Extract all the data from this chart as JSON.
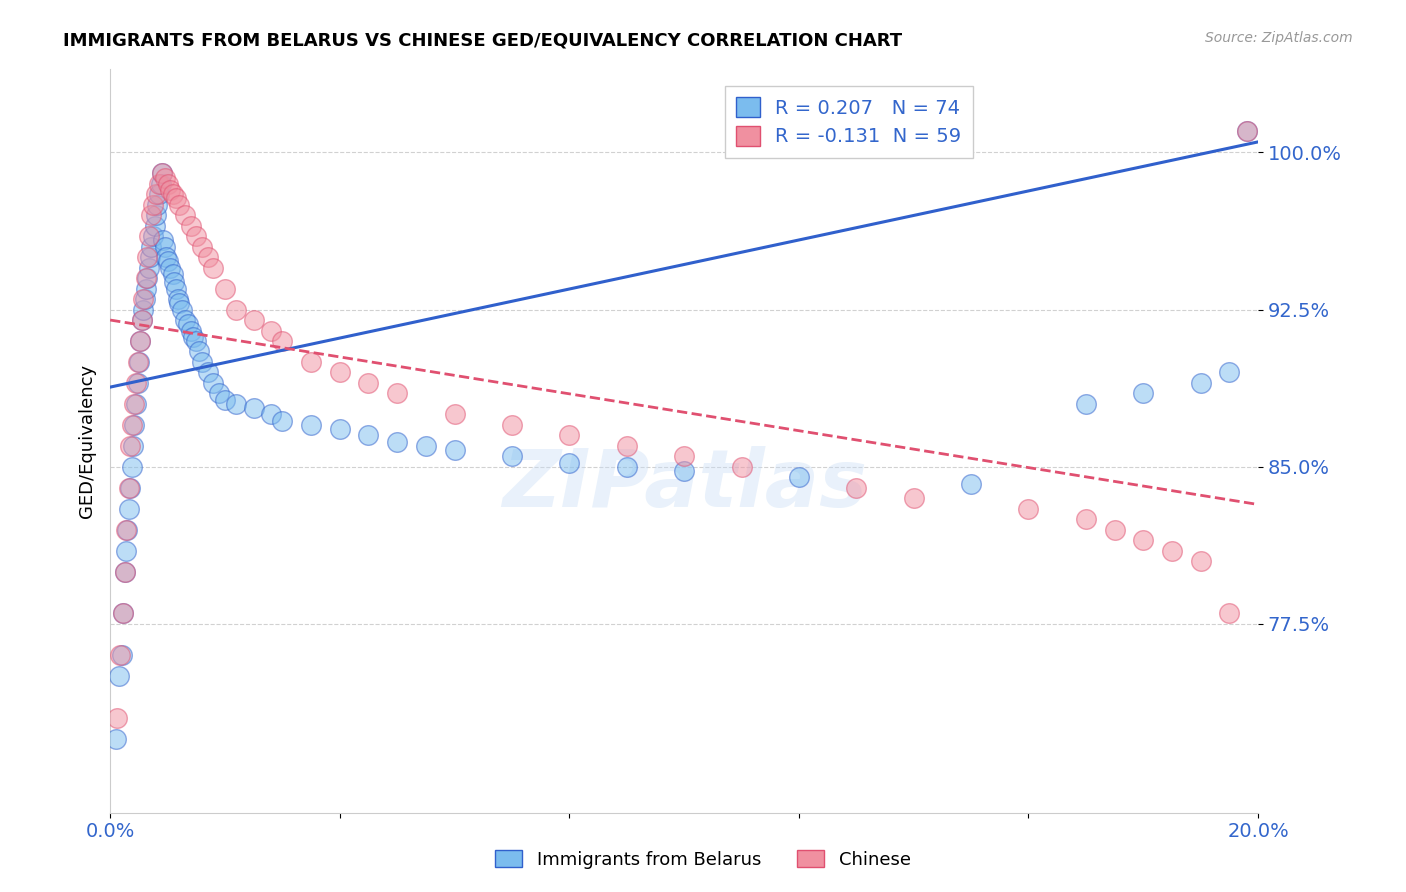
{
  "title": "IMMIGRANTS FROM BELARUS VS CHINESE GED/EQUIVALENCY CORRELATION CHART",
  "source": "Source: ZipAtlas.com",
  "ylabel": "GED/Equivalency",
  "ytick_labels": [
    "100.0%",
    "92.5%",
    "85.0%",
    "77.5%"
  ],
  "ytick_values": [
    1.0,
    0.925,
    0.85,
    0.775
  ],
  "xlim": [
    0.0,
    0.2
  ],
  "ylim": [
    0.685,
    1.04
  ],
  "legend_r1": "R = 0.207",
  "legend_n1": "N = 74",
  "legend_r2": "R = -0.131",
  "legend_n2": "N = 59",
  "color_blue": "#7bbcee",
  "color_pink": "#f090a0",
  "color_line_blue": "#3060cc",
  "color_line_pink": "#e05070",
  "color_axis_labels": "#3366cc",
  "watermark": "ZIPatlas",
  "blue_line_x0": 0.0,
  "blue_line_y0": 0.888,
  "blue_line_x1": 0.2,
  "blue_line_y1": 1.005,
  "pink_line_x0": 0.0,
  "pink_line_y0": 0.92,
  "pink_line_x1": 0.2,
  "pink_line_y1": 0.832,
  "belarus_x": [
    0.001,
    0.0015,
    0.002,
    0.0022,
    0.0025,
    0.0028,
    0.003,
    0.0032,
    0.0035,
    0.0038,
    0.004,
    0.0042,
    0.0045,
    0.0048,
    0.005,
    0.0052,
    0.0055,
    0.0058,
    0.006,
    0.0062,
    0.0065,
    0.0068,
    0.007,
    0.0072,
    0.0075,
    0.0078,
    0.008,
    0.0082,
    0.0085,
    0.0088,
    0.009,
    0.0092,
    0.0095,
    0.0098,
    0.01,
    0.0105,
    0.011,
    0.0112,
    0.0115,
    0.0118,
    0.012,
    0.0125,
    0.013,
    0.0135,
    0.014,
    0.0145,
    0.015,
    0.0155,
    0.016,
    0.017,
    0.018,
    0.019,
    0.02,
    0.022,
    0.025,
    0.028,
    0.03,
    0.035,
    0.04,
    0.045,
    0.05,
    0.055,
    0.06,
    0.07,
    0.08,
    0.09,
    0.1,
    0.12,
    0.15,
    0.17,
    0.18,
    0.19,
    0.195,
    0.198
  ],
  "belarus_y": [
    0.72,
    0.75,
    0.76,
    0.78,
    0.8,
    0.81,
    0.82,
    0.83,
    0.84,
    0.85,
    0.86,
    0.87,
    0.88,
    0.89,
    0.9,
    0.91,
    0.92,
    0.925,
    0.93,
    0.935,
    0.94,
    0.945,
    0.95,
    0.955,
    0.96,
    0.965,
    0.97,
    0.975,
    0.98,
    0.985,
    0.99,
    0.958,
    0.955,
    0.95,
    0.948,
    0.945,
    0.942,
    0.938,
    0.935,
    0.93,
    0.928,
    0.925,
    0.92,
    0.918,
    0.915,
    0.912,
    0.91,
    0.905,
    0.9,
    0.895,
    0.89,
    0.885,
    0.882,
    0.88,
    0.878,
    0.875,
    0.872,
    0.87,
    0.868,
    0.865,
    0.862,
    0.86,
    0.858,
    0.855,
    0.852,
    0.85,
    0.848,
    0.845,
    0.842,
    0.88,
    0.885,
    0.89,
    0.895,
    1.01
  ],
  "chinese_x": [
    0.0012,
    0.0018,
    0.0022,
    0.0025,
    0.0028,
    0.0032,
    0.0035,
    0.0038,
    0.0042,
    0.0045,
    0.0048,
    0.0052,
    0.0055,
    0.0058,
    0.0062,
    0.0065,
    0.0068,
    0.0072,
    0.0075,
    0.008,
    0.0085,
    0.009,
    0.0095,
    0.01,
    0.0105,
    0.011,
    0.0115,
    0.012,
    0.013,
    0.014,
    0.015,
    0.016,
    0.017,
    0.018,
    0.02,
    0.022,
    0.025,
    0.028,
    0.03,
    0.035,
    0.04,
    0.045,
    0.05,
    0.06,
    0.07,
    0.08,
    0.09,
    0.1,
    0.11,
    0.13,
    0.14,
    0.16,
    0.17,
    0.175,
    0.18,
    0.185,
    0.19,
    0.195,
    0.198
  ],
  "chinese_y": [
    0.73,
    0.76,
    0.78,
    0.8,
    0.82,
    0.84,
    0.86,
    0.87,
    0.88,
    0.89,
    0.9,
    0.91,
    0.92,
    0.93,
    0.94,
    0.95,
    0.96,
    0.97,
    0.975,
    0.98,
    0.985,
    0.99,
    0.988,
    0.985,
    0.982,
    0.98,
    0.978,
    0.975,
    0.97,
    0.965,
    0.96,
    0.955,
    0.95,
    0.945,
    0.935,
    0.925,
    0.92,
    0.915,
    0.91,
    0.9,
    0.895,
    0.89,
    0.885,
    0.875,
    0.87,
    0.865,
    0.86,
    0.855,
    0.85,
    0.84,
    0.835,
    0.83,
    0.825,
    0.82,
    0.815,
    0.81,
    0.805,
    0.78,
    1.01
  ]
}
